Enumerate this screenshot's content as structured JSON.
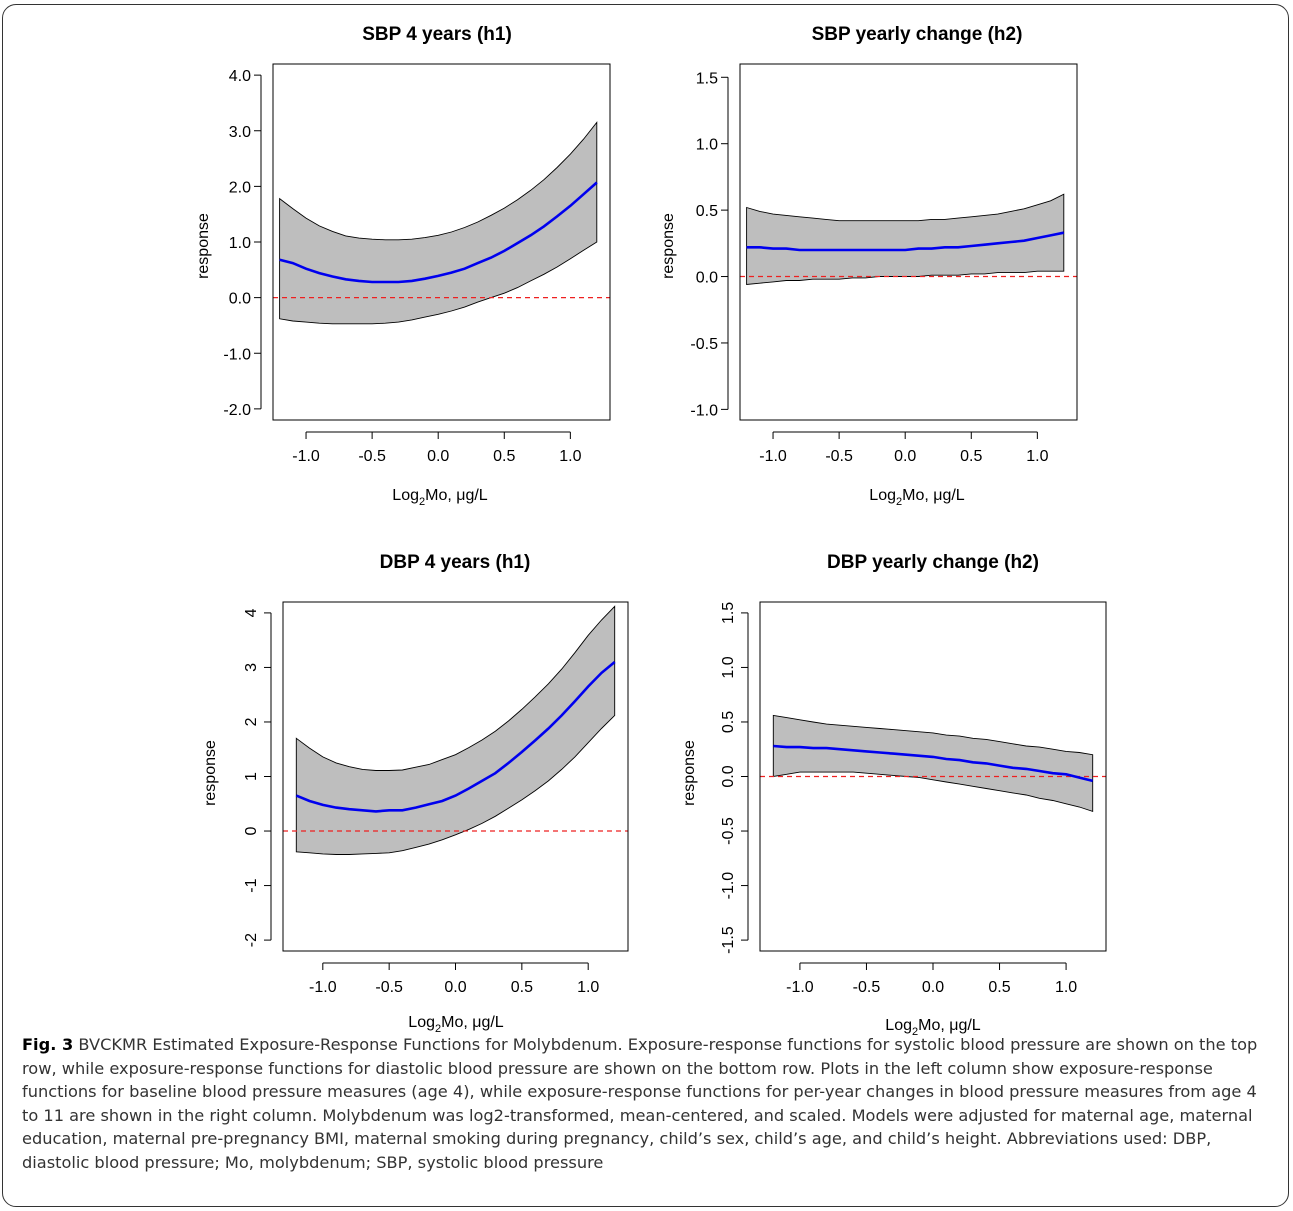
{
  "chart_data": [
    {
      "type": "line",
      "title": "SBP 4 years (h1)",
      "xlabel": "Log2Mo, μg/L",
      "ylabel": "response",
      "xlim": [
        -1.25,
        1.3
      ],
      "ylim": [
        -2.2,
        4.2
      ],
      "xticks": [
        -1.0,
        -0.5,
        0.0,
        0.5,
        1.0
      ],
      "xtick_labels": [
        "-1.0",
        "-0.5",
        "0.0",
        "0.5",
        "1.0"
      ],
      "yticks": [
        -2.0,
        -1.0,
        0.0,
        1.0,
        2.0,
        3.0,
        4.0
      ],
      "ytick_labels": [
        "-2.0",
        "-1.0",
        "0.0",
        "1.0",
        "2.0",
        "3.0",
        "4.0"
      ],
      "ytick_rotated": false,
      "x": [
        -1.2,
        -1.1,
        -1.0,
        -0.9,
        -0.8,
        -0.7,
        -0.6,
        -0.5,
        -0.4,
        -0.3,
        -0.2,
        -0.1,
        0.0,
        0.1,
        0.2,
        0.3,
        0.4,
        0.5,
        0.6,
        0.7,
        0.8,
        0.9,
        1.0,
        1.1,
        1.2
      ],
      "series": [
        {
          "role": "estimate",
          "values": [
            0.68,
            0.62,
            0.52,
            0.44,
            0.38,
            0.33,
            0.3,
            0.28,
            0.28,
            0.28,
            0.3,
            0.34,
            0.39,
            0.45,
            0.52,
            0.62,
            0.72,
            0.84,
            0.98,
            1.12,
            1.28,
            1.46,
            1.65,
            1.86,
            2.07
          ]
        },
        {
          "role": "lower",
          "values": [
            -0.38,
            -0.42,
            -0.44,
            -0.46,
            -0.47,
            -0.47,
            -0.47,
            -0.47,
            -0.46,
            -0.44,
            -0.4,
            -0.35,
            -0.3,
            -0.24,
            -0.17,
            -0.08,
            0.0,
            0.08,
            0.18,
            0.3,
            0.42,
            0.55,
            0.7,
            0.85,
            1.0
          ]
        },
        {
          "role": "upper",
          "values": [
            1.78,
            1.6,
            1.43,
            1.29,
            1.19,
            1.11,
            1.07,
            1.05,
            1.04,
            1.04,
            1.05,
            1.08,
            1.12,
            1.18,
            1.26,
            1.36,
            1.48,
            1.61,
            1.76,
            1.93,
            2.12,
            2.34,
            2.58,
            2.85,
            3.15
          ]
        }
      ],
      "reference_line": 0,
      "colors": {
        "estimate": "#0000ee",
        "band": "#bebebe",
        "reference": "#ee2020"
      }
    },
    {
      "type": "line",
      "title": "SBP yearly change (h2)",
      "xlabel": "Log2Mo, μg/L",
      "ylabel": "response",
      "xlim": [
        -1.25,
        1.3
      ],
      "ylim": [
        -1.08,
        1.6
      ],
      "xticks": [
        -1.0,
        -0.5,
        0.0,
        0.5,
        1.0
      ],
      "xtick_labels": [
        "-1.0",
        "-0.5",
        "0.0",
        "0.5",
        "1.0"
      ],
      "yticks": [
        -1.0,
        -0.5,
        0.0,
        0.5,
        1.0,
        1.5
      ],
      "ytick_labels": [
        "-1.0",
        "-0.5",
        "0.0",
        "0.5",
        "1.0",
        "1.5"
      ],
      "ytick_rotated": false,
      "x": [
        -1.2,
        -1.1,
        -1.0,
        -0.9,
        -0.8,
        -0.7,
        -0.6,
        -0.5,
        -0.4,
        -0.3,
        -0.2,
        -0.1,
        0.0,
        0.1,
        0.2,
        0.3,
        0.4,
        0.5,
        0.6,
        0.7,
        0.8,
        0.9,
        1.0,
        1.1,
        1.2
      ],
      "series": [
        {
          "role": "estimate",
          "values": [
            0.22,
            0.22,
            0.21,
            0.21,
            0.2,
            0.2,
            0.2,
            0.2,
            0.2,
            0.2,
            0.2,
            0.2,
            0.2,
            0.21,
            0.21,
            0.22,
            0.22,
            0.23,
            0.24,
            0.25,
            0.26,
            0.27,
            0.29,
            0.31,
            0.33
          ]
        },
        {
          "role": "lower",
          "values": [
            -0.06,
            -0.05,
            -0.04,
            -0.03,
            -0.03,
            -0.02,
            -0.02,
            -0.02,
            -0.01,
            -0.01,
            0.0,
            0.0,
            0.0,
            0.0,
            0.01,
            0.01,
            0.01,
            0.02,
            0.02,
            0.03,
            0.03,
            0.03,
            0.04,
            0.04,
            0.04
          ]
        },
        {
          "role": "upper",
          "values": [
            0.52,
            0.49,
            0.47,
            0.46,
            0.45,
            0.44,
            0.43,
            0.42,
            0.42,
            0.42,
            0.42,
            0.42,
            0.42,
            0.42,
            0.43,
            0.43,
            0.44,
            0.45,
            0.46,
            0.47,
            0.49,
            0.51,
            0.54,
            0.57,
            0.62
          ]
        }
      ],
      "reference_line": 0,
      "colors": {
        "estimate": "#0000ee",
        "band": "#bebebe",
        "reference": "#ee2020"
      }
    },
    {
      "type": "line",
      "title": "DBP 4 years (h1)",
      "xlabel": "Log2Mo, μg/L",
      "ylabel": "response",
      "xlim": [
        -1.3,
        1.3
      ],
      "ylim": [
        -2.2,
        4.2
      ],
      "xticks": [
        -1.0,
        -0.5,
        0.0,
        0.5,
        1.0
      ],
      "xtick_labels": [
        "-1.0",
        "-0.5",
        "0.0",
        "0.5",
        "1.0"
      ],
      "yticks": [
        -2,
        -1,
        0,
        1,
        2,
        3,
        4
      ],
      "ytick_labels": [
        "-2",
        "-1",
        "0",
        "1",
        "2",
        "3",
        "4"
      ],
      "ytick_rotated": true,
      "x": [
        -1.2,
        -1.1,
        -1.0,
        -0.9,
        -0.8,
        -0.7,
        -0.6,
        -0.5,
        -0.4,
        -0.3,
        -0.2,
        -0.1,
        0.0,
        0.1,
        0.2,
        0.3,
        0.4,
        0.5,
        0.6,
        0.7,
        0.8,
        0.9,
        1.0,
        1.1,
        1.2
      ],
      "series": [
        {
          "role": "estimate",
          "values": [
            0.65,
            0.55,
            0.48,
            0.43,
            0.4,
            0.38,
            0.36,
            0.38,
            0.38,
            0.43,
            0.49,
            0.55,
            0.65,
            0.78,
            0.92,
            1.06,
            1.25,
            1.45,
            1.66,
            1.88,
            2.12,
            2.38,
            2.65,
            2.9,
            3.1
          ]
        },
        {
          "role": "lower",
          "values": [
            -0.38,
            -0.4,
            -0.42,
            -0.43,
            -0.43,
            -0.42,
            -0.41,
            -0.4,
            -0.36,
            -0.3,
            -0.24,
            -0.16,
            -0.07,
            0.03,
            0.14,
            0.27,
            0.42,
            0.57,
            0.74,
            0.92,
            1.13,
            1.36,
            1.62,
            1.88,
            2.12
          ]
        },
        {
          "role": "upper",
          "values": [
            1.7,
            1.52,
            1.36,
            1.25,
            1.18,
            1.13,
            1.11,
            1.11,
            1.12,
            1.17,
            1.22,
            1.31,
            1.4,
            1.53,
            1.67,
            1.83,
            2.02,
            2.23,
            2.46,
            2.7,
            2.97,
            3.27,
            3.59,
            3.87,
            4.12
          ]
        }
      ],
      "reference_line": 0,
      "colors": {
        "estimate": "#0000ee",
        "band": "#bebebe",
        "reference": "#ee2020"
      }
    },
    {
      "type": "line",
      "title": "DBP yearly change (h2)",
      "xlabel": "Log2Mo, μg/L",
      "ylabel": "response",
      "xlim": [
        -1.3,
        1.3
      ],
      "ylim": [
        -1.6,
        1.6
      ],
      "xticks": [
        -1.0,
        -0.5,
        0.0,
        0.5,
        1.0
      ],
      "xtick_labels": [
        "-1.0",
        "-0.5",
        "0.0",
        "0.5",
        "1.0"
      ],
      "yticks": [
        -1.5,
        -1.0,
        -0.5,
        0.0,
        0.5,
        1.0,
        1.5
      ],
      "ytick_labels": [
        "-1.5",
        "-1.0",
        "-0.5",
        "0.0",
        "0.5",
        "1.0",
        "1.5"
      ],
      "ytick_rotated": true,
      "x": [
        -1.2,
        -1.1,
        -1.0,
        -0.9,
        -0.8,
        -0.7,
        -0.6,
        -0.5,
        -0.4,
        -0.3,
        -0.2,
        -0.1,
        0.0,
        0.1,
        0.2,
        0.3,
        0.4,
        0.5,
        0.6,
        0.7,
        0.8,
        0.9,
        1.0,
        1.1,
        1.2
      ],
      "series": [
        {
          "role": "estimate",
          "values": [
            0.28,
            0.27,
            0.27,
            0.26,
            0.26,
            0.25,
            0.24,
            0.23,
            0.22,
            0.21,
            0.2,
            0.19,
            0.18,
            0.16,
            0.15,
            0.13,
            0.12,
            0.1,
            0.08,
            0.07,
            0.05,
            0.03,
            0.02,
            -0.01,
            -0.04
          ]
        },
        {
          "role": "lower",
          "values": [
            0.0,
            0.02,
            0.04,
            0.04,
            0.04,
            0.04,
            0.04,
            0.03,
            0.02,
            0.01,
            0.0,
            -0.01,
            -0.03,
            -0.05,
            -0.07,
            -0.09,
            -0.11,
            -0.13,
            -0.15,
            -0.17,
            -0.2,
            -0.22,
            -0.25,
            -0.28,
            -0.32
          ]
        },
        {
          "role": "upper",
          "values": [
            0.56,
            0.54,
            0.52,
            0.5,
            0.48,
            0.47,
            0.46,
            0.45,
            0.44,
            0.43,
            0.42,
            0.41,
            0.4,
            0.38,
            0.37,
            0.35,
            0.34,
            0.32,
            0.3,
            0.28,
            0.27,
            0.25,
            0.23,
            0.22,
            0.2
          ]
        }
      ],
      "reference_line": 0,
      "colors": {
        "estimate": "#0000ee",
        "band": "#bebebe",
        "reference": "#ee2020"
      }
    }
  ],
  "caption": {
    "label": "Fig. 3",
    "text": " BVCKMR Estimated Exposure-Response Functions for Molybdenum. Exposure-response functions for systolic blood pressure are shown on the top row, while exposure-response functions for diastolic blood pressure are shown on the bottom row. Plots in the left column show exposure-response functions for baseline blood pressure measures (age 4), while exposure-response functions for per-year changes in blood pressure measures from age 4 to 11 are shown in the right column. Molybdenum was log2-transformed, mean-centered, and scaled. Models were adjusted for maternal age, maternal education, maternal pre-pregnancy BMI, maternal smoking during pregnancy, child’s sex, child’s age, and child’s height. Abbreviations used: DBP, diastolic blood pressure; Mo, molybdenum; SBP, systolic blood pressure"
  }
}
